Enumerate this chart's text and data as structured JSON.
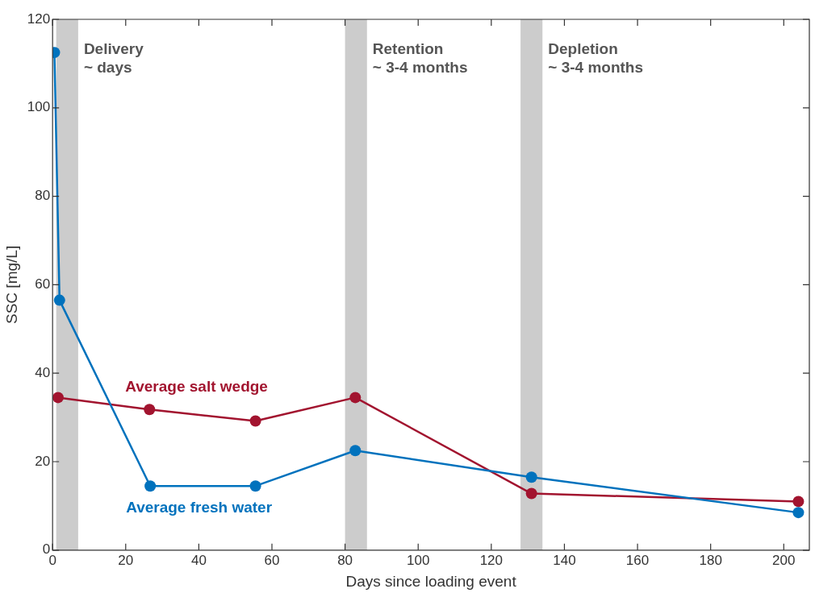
{
  "chart_data": {
    "type": "line",
    "xlabel": "Days since loading event",
    "ylabel": "SSC [mg/L]",
    "xlim": [
      0,
      207
    ],
    "xticks": [
      0,
      20,
      40,
      60,
      80,
      100,
      120,
      140,
      160,
      180,
      200
    ],
    "ylim": [
      0,
      120
    ],
    "yticks": [
      0,
      20,
      40,
      60,
      80,
      100,
      120
    ],
    "grid": false,
    "legend": false,
    "marker": "circle",
    "line_style": "solid",
    "series": [
      {
        "name": "Average fresh water",
        "color": "#0072bd",
        "x": [
          0.5,
          1.9,
          26.7,
          55.5,
          82.8,
          131,
          204
        ],
        "values": [
          112.5,
          56.5,
          14.5,
          14.5,
          22.5,
          16.5,
          8.5
        ]
      },
      {
        "name": "Average salt wedge",
        "color": "#a2142f",
        "x": [
          1.5,
          26.5,
          55.5,
          82.8,
          131,
          204
        ],
        "values": [
          34.5,
          31.8,
          29.2,
          34.5,
          12.8,
          11
        ]
      }
    ],
    "bands": [
      {
        "axis": "x",
        "from": 1,
        "to": 7,
        "label": "Delivery\n~ days",
        "color": "#cccccc"
      },
      {
        "axis": "x",
        "from": 80,
        "to": 86,
        "label": "Retention\n~ 3-4 months",
        "color": "#cccccc"
      },
      {
        "axis": "x",
        "from": 128,
        "to": 134,
        "label": "Depletion\n~ 3-4 months",
        "color": "#cccccc"
      }
    ]
  }
}
